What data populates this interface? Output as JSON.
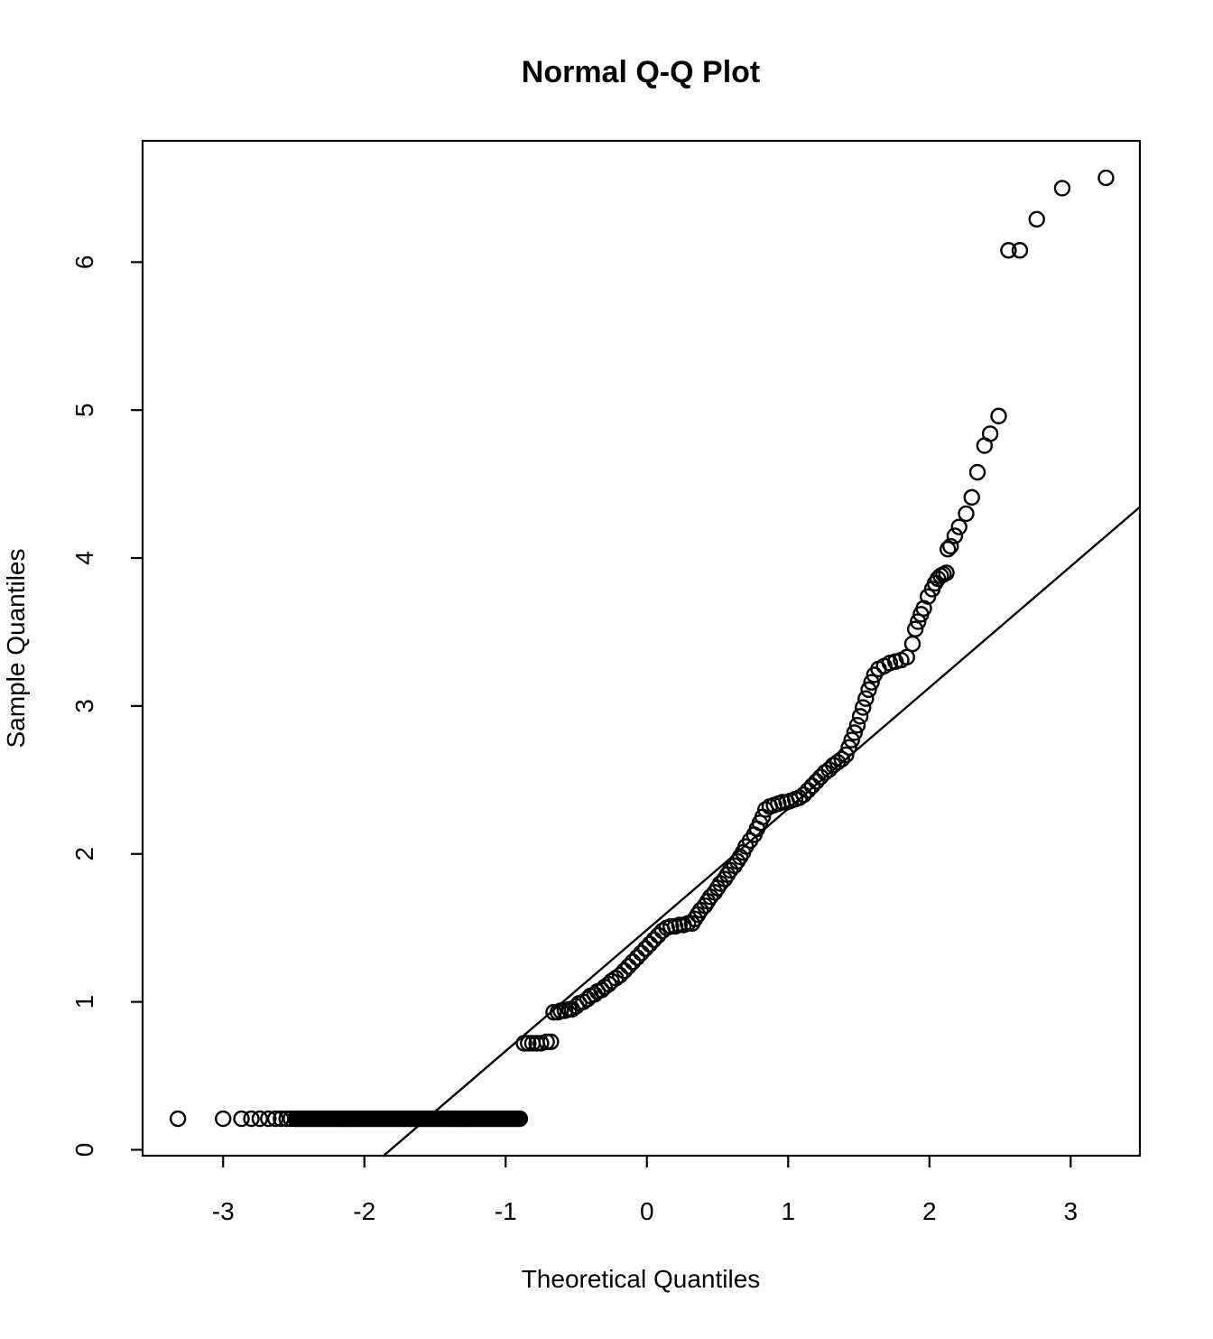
{
  "chart_data": {
    "type": "scatter",
    "title": "Normal Q-Q Plot",
    "xlabel": "Theoretical Quantiles",
    "ylabel": "Sample Quantiles",
    "x_ticks": [
      -3,
      -2,
      -1,
      0,
      1,
      2,
      3
    ],
    "y_ticks": [
      0,
      1,
      2,
      3,
      4,
      5,
      6
    ],
    "xlim": [
      -3.57,
      3.49
    ],
    "ylim": [
      -0.04,
      6.82
    ],
    "grid": false,
    "legend": null,
    "marker": {
      "shape": "open-circle",
      "color": "#000000"
    },
    "line_color": "#000000",
    "background_color": "#ffffff",
    "reference_line": {
      "x": [
        -1.87,
        3.49
      ],
      "y": [
        -0.045,
        4.345
      ]
    },
    "dense_band": {
      "v": 0.21,
      "t_start": -2.49,
      "t_end": -0.9,
      "count": 130
    },
    "points": [
      [
        -3.32,
        0.21
      ],
      [
        -3.0,
        0.21
      ],
      [
        -2.87,
        0.21
      ],
      [
        -2.8,
        0.21
      ],
      [
        -2.74,
        0.21
      ],
      [
        -2.68,
        0.21
      ],
      [
        -2.63,
        0.21
      ],
      [
        -2.59,
        0.21
      ],
      [
        -2.55,
        0.21
      ],
      [
        -2.52,
        0.21
      ],
      [
        -0.87,
        0.72
      ],
      [
        -0.84,
        0.72
      ],
      [
        -0.81,
        0.72
      ],
      [
        -0.78,
        0.72
      ],
      [
        -0.75,
        0.72
      ],
      [
        -0.71,
        0.73
      ],
      [
        -0.68,
        0.73
      ],
      [
        -0.66,
        0.93
      ],
      [
        -0.63,
        0.93
      ],
      [
        -0.61,
        0.94
      ],
      [
        -0.58,
        0.94
      ],
      [
        -0.55,
        0.95
      ],
      [
        -0.53,
        0.95
      ],
      [
        -0.5,
        0.97
      ],
      [
        -0.48,
        0.99
      ],
      [
        -0.45,
        1.0
      ],
      [
        -0.42,
        1.02
      ],
      [
        -0.4,
        1.04
      ],
      [
        -0.37,
        1.05
      ],
      [
        -0.35,
        1.07
      ],
      [
        -0.32,
        1.08
      ],
      [
        -0.3,
        1.1
      ],
      [
        -0.27,
        1.12
      ],
      [
        -0.25,
        1.14
      ],
      [
        -0.22,
        1.16
      ],
      [
        -0.19,
        1.18
      ],
      [
        -0.16,
        1.21
      ],
      [
        -0.13,
        1.24
      ],
      [
        -0.1,
        1.27
      ],
      [
        -0.07,
        1.3
      ],
      [
        -0.04,
        1.33
      ],
      [
        -0.01,
        1.36
      ],
      [
        0.02,
        1.39
      ],
      [
        0.05,
        1.42
      ],
      [
        0.08,
        1.45
      ],
      [
        0.11,
        1.48
      ],
      [
        0.14,
        1.5
      ],
      [
        0.17,
        1.51
      ],
      [
        0.2,
        1.51
      ],
      [
        0.23,
        1.52
      ],
      [
        0.26,
        1.52
      ],
      [
        0.29,
        1.53
      ],
      [
        0.32,
        1.53
      ],
      [
        0.34,
        1.56
      ],
      [
        0.36,
        1.59
      ],
      [
        0.38,
        1.62
      ],
      [
        0.41,
        1.65
      ],
      [
        0.43,
        1.68
      ],
      [
        0.45,
        1.71
      ],
      [
        0.48,
        1.74
      ],
      [
        0.5,
        1.77
      ],
      [
        0.52,
        1.8
      ],
      [
        0.55,
        1.83
      ],
      [
        0.57,
        1.86
      ],
      [
        0.59,
        1.89
      ],
      [
        0.62,
        1.92
      ],
      [
        0.64,
        1.95
      ],
      [
        0.66,
        1.98
      ],
      [
        0.68,
        2.01
      ],
      [
        0.7,
        2.05
      ],
      [
        0.73,
        2.09
      ],
      [
        0.76,
        2.13
      ],
      [
        0.78,
        2.17
      ],
      [
        0.8,
        2.21
      ],
      [
        0.82,
        2.25
      ],
      [
        0.84,
        2.3
      ],
      [
        0.87,
        2.32
      ],
      [
        0.9,
        2.33
      ],
      [
        0.93,
        2.34
      ],
      [
        0.96,
        2.35
      ],
      [
        0.99,
        2.35
      ],
      [
        1.02,
        2.36
      ],
      [
        1.05,
        2.37
      ],
      [
        1.08,
        2.38
      ],
      [
        1.11,
        2.4
      ],
      [
        1.14,
        2.43
      ],
      [
        1.17,
        2.46
      ],
      [
        1.2,
        2.49
      ],
      [
        1.23,
        2.52
      ],
      [
        1.26,
        2.55
      ],
      [
        1.29,
        2.57
      ],
      [
        1.32,
        2.6
      ],
      [
        1.35,
        2.62
      ],
      [
        1.38,
        2.64
      ],
      [
        1.41,
        2.67
      ],
      [
        1.43,
        2.72
      ],
      [
        1.45,
        2.77
      ],
      [
        1.47,
        2.82
      ],
      [
        1.49,
        2.87
      ],
      [
        1.51,
        2.93
      ],
      [
        1.53,
        2.99
      ],
      [
        1.55,
        3.05
      ],
      [
        1.57,
        3.11
      ],
      [
        1.59,
        3.16
      ],
      [
        1.61,
        3.21
      ],
      [
        1.64,
        3.25
      ],
      [
        1.68,
        3.27
      ],
      [
        1.72,
        3.29
      ],
      [
        1.76,
        3.3
      ],
      [
        1.8,
        3.31
      ],
      [
        1.84,
        3.33
      ],
      [
        1.88,
        3.42
      ],
      [
        1.9,
        3.52
      ],
      [
        1.92,
        3.57
      ],
      [
        1.94,
        3.62
      ],
      [
        1.96,
        3.66
      ],
      [
        1.99,
        3.74
      ],
      [
        2.02,
        3.79
      ],
      [
        2.04,
        3.83
      ],
      [
        2.06,
        3.86
      ],
      [
        2.08,
        3.88
      ],
      [
        2.1,
        3.89
      ],
      [
        2.12,
        3.9
      ],
      [
        2.13,
        4.06
      ],
      [
        2.15,
        4.08
      ],
      [
        2.18,
        4.15
      ],
      [
        2.21,
        4.21
      ],
      [
        2.26,
        4.3
      ],
      [
        2.3,
        4.41
      ],
      [
        2.34,
        4.58
      ],
      [
        2.39,
        4.76
      ],
      [
        2.43,
        4.84
      ],
      [
        2.49,
        4.96
      ],
      [
        2.56,
        6.08
      ],
      [
        2.64,
        6.08
      ],
      [
        2.76,
        6.29
      ],
      [
        2.94,
        6.5
      ],
      [
        3.25,
        6.57
      ]
    ]
  }
}
